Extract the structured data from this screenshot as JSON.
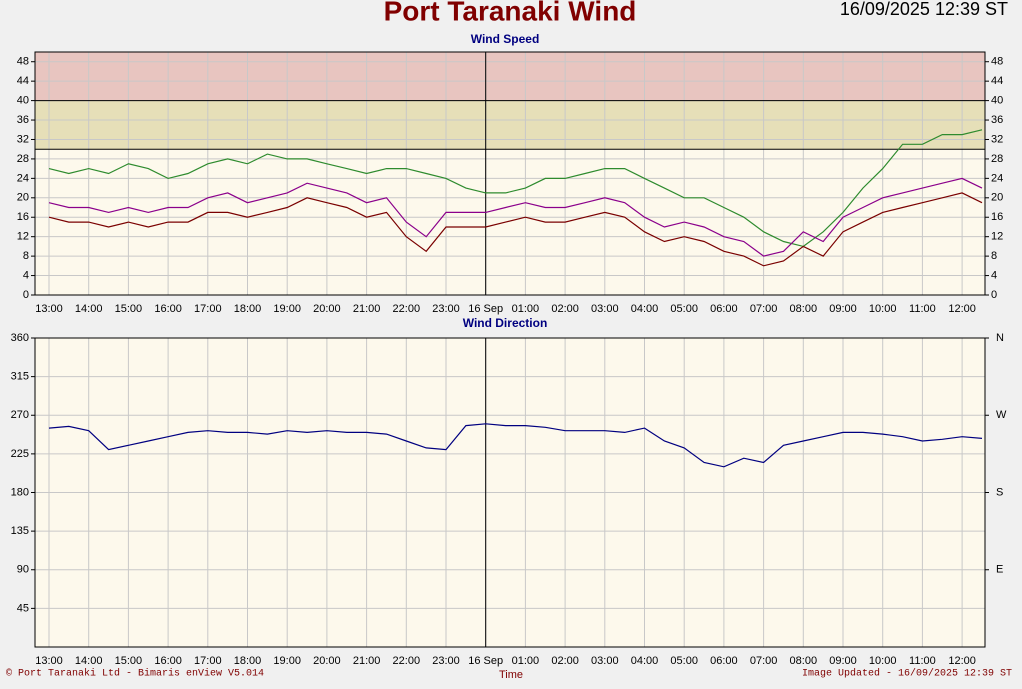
{
  "header": {
    "title": "Port Taranaki Wind",
    "timestamp": "16/09/2025 12:39 ST"
  },
  "chart_data": [
    {
      "type": "line",
      "title": "Wind Speed",
      "categories": [
        "13:00",
        null,
        "14:00",
        null,
        "15:00",
        null,
        "16:00",
        null,
        "17:00",
        null,
        "18:00",
        null,
        "19:00",
        null,
        "20:00",
        null,
        "21:00",
        null,
        "22:00",
        null,
        "23:00",
        null,
        "16 Sep",
        null,
        "01:00",
        null,
        "02:00",
        null,
        "03:00",
        null,
        "04:00",
        null,
        "05:00",
        null,
        "06:00",
        null,
        "07:00",
        null,
        "08:00",
        null,
        "09:00",
        null,
        "10:00",
        null,
        "11:00",
        null,
        "12:00",
        null
      ],
      "series": [
        {
          "color": "#2e8b2e",
          "values": [
            26,
            25,
            26,
            25,
            27,
            26,
            24,
            25,
            27,
            28,
            27,
            29,
            28,
            28,
            27,
            26,
            25,
            26,
            26,
            25,
            24,
            22,
            21,
            21,
            22,
            24,
            24,
            25,
            26,
            26,
            24,
            22,
            20,
            20,
            18,
            16,
            13,
            11,
            10,
            13,
            17,
            22,
            26,
            31,
            31,
            33,
            33,
            34
          ]
        },
        {
          "color": "#8b008b",
          "values": [
            19,
            18,
            18,
            17,
            18,
            17,
            18,
            18,
            20,
            21,
            19,
            20,
            21,
            23,
            22,
            21,
            19,
            20,
            15,
            12,
            17,
            17,
            17,
            18,
            19,
            18,
            18,
            19,
            20,
            19,
            16,
            14,
            15,
            14,
            12,
            11,
            8,
            9,
            13,
            11,
            16,
            18,
            20,
            21,
            22,
            23,
            24,
            22
          ]
        },
        {
          "color": "#7a0000",
          "values": [
            16,
            15,
            15,
            14,
            15,
            14,
            15,
            15,
            17,
            17,
            16,
            17,
            18,
            20,
            19,
            18,
            16,
            17,
            12,
            9,
            14,
            14,
            14,
            15,
            16,
            15,
            15,
            16,
            17,
            16,
            13,
            11,
            12,
            11,
            9,
            8,
            6,
            7,
            10,
            8,
            13,
            15,
            17,
            18,
            19,
            20,
            21,
            19
          ]
        }
      ],
      "ylim": [
        0,
        50
      ],
      "yticks": [
        0,
        4,
        8,
        12,
        16,
        20,
        24,
        28,
        32,
        36,
        40,
        44,
        48
      ],
      "mirror_yticks": true,
      "grid": true,
      "bands": [
        {
          "from": 30,
          "to": 40,
          "color": "#e6dfb8"
        },
        {
          "from": 40,
          "to": 50,
          "color": "#e8c5c0"
        }
      ]
    },
    {
      "type": "line",
      "title": "Wind Direction",
      "x_label": "Time",
      "categories": [
        "13:00",
        null,
        "14:00",
        null,
        "15:00",
        null,
        "16:00",
        null,
        "17:00",
        null,
        "18:00",
        null,
        "19:00",
        null,
        "20:00",
        null,
        "21:00",
        null,
        "22:00",
        null,
        "23:00",
        null,
        "16 Sep",
        null,
        "01:00",
        null,
        "02:00",
        null,
        "03:00",
        null,
        "04:00",
        null,
        "05:00",
        null,
        "06:00",
        null,
        "07:00",
        null,
        "08:00",
        null,
        "09:00",
        null,
        "10:00",
        null,
        "11:00",
        null,
        "12:00",
        null
      ],
      "series": [
        {
          "color": "#000080",
          "values": [
            255,
            257,
            252,
            230,
            235,
            240,
            245,
            250,
            252,
            250,
            250,
            248,
            252,
            250,
            252,
            250,
            250,
            248,
            240,
            232,
            230,
            258,
            260,
            258,
            258,
            256,
            252,
            252,
            252,
            250,
            255,
            240,
            232,
            215,
            210,
            220,
            215,
            235,
            240,
            245,
            250,
            250,
            248,
            245,
            240,
            242,
            245,
            243
          ]
        }
      ],
      "ylim": [
        0,
        360
      ],
      "yticks": [
        45,
        90,
        135,
        180,
        225,
        270,
        315,
        360
      ],
      "y2lim": [
        0,
        360
      ],
      "y2ticks": [
        {
          "value": 90,
          "label": "E"
        },
        {
          "value": 180,
          "label": "S"
        },
        {
          "value": 270,
          "label": "W"
        },
        {
          "value": 360,
          "label": "N"
        }
      ],
      "grid": true
    }
  ],
  "footer": {
    "credit": "© Port Taranaki Ltd - Bimaris enView V5.014",
    "updated": "Image Updated - 16/09/2025 12:39 ST"
  }
}
